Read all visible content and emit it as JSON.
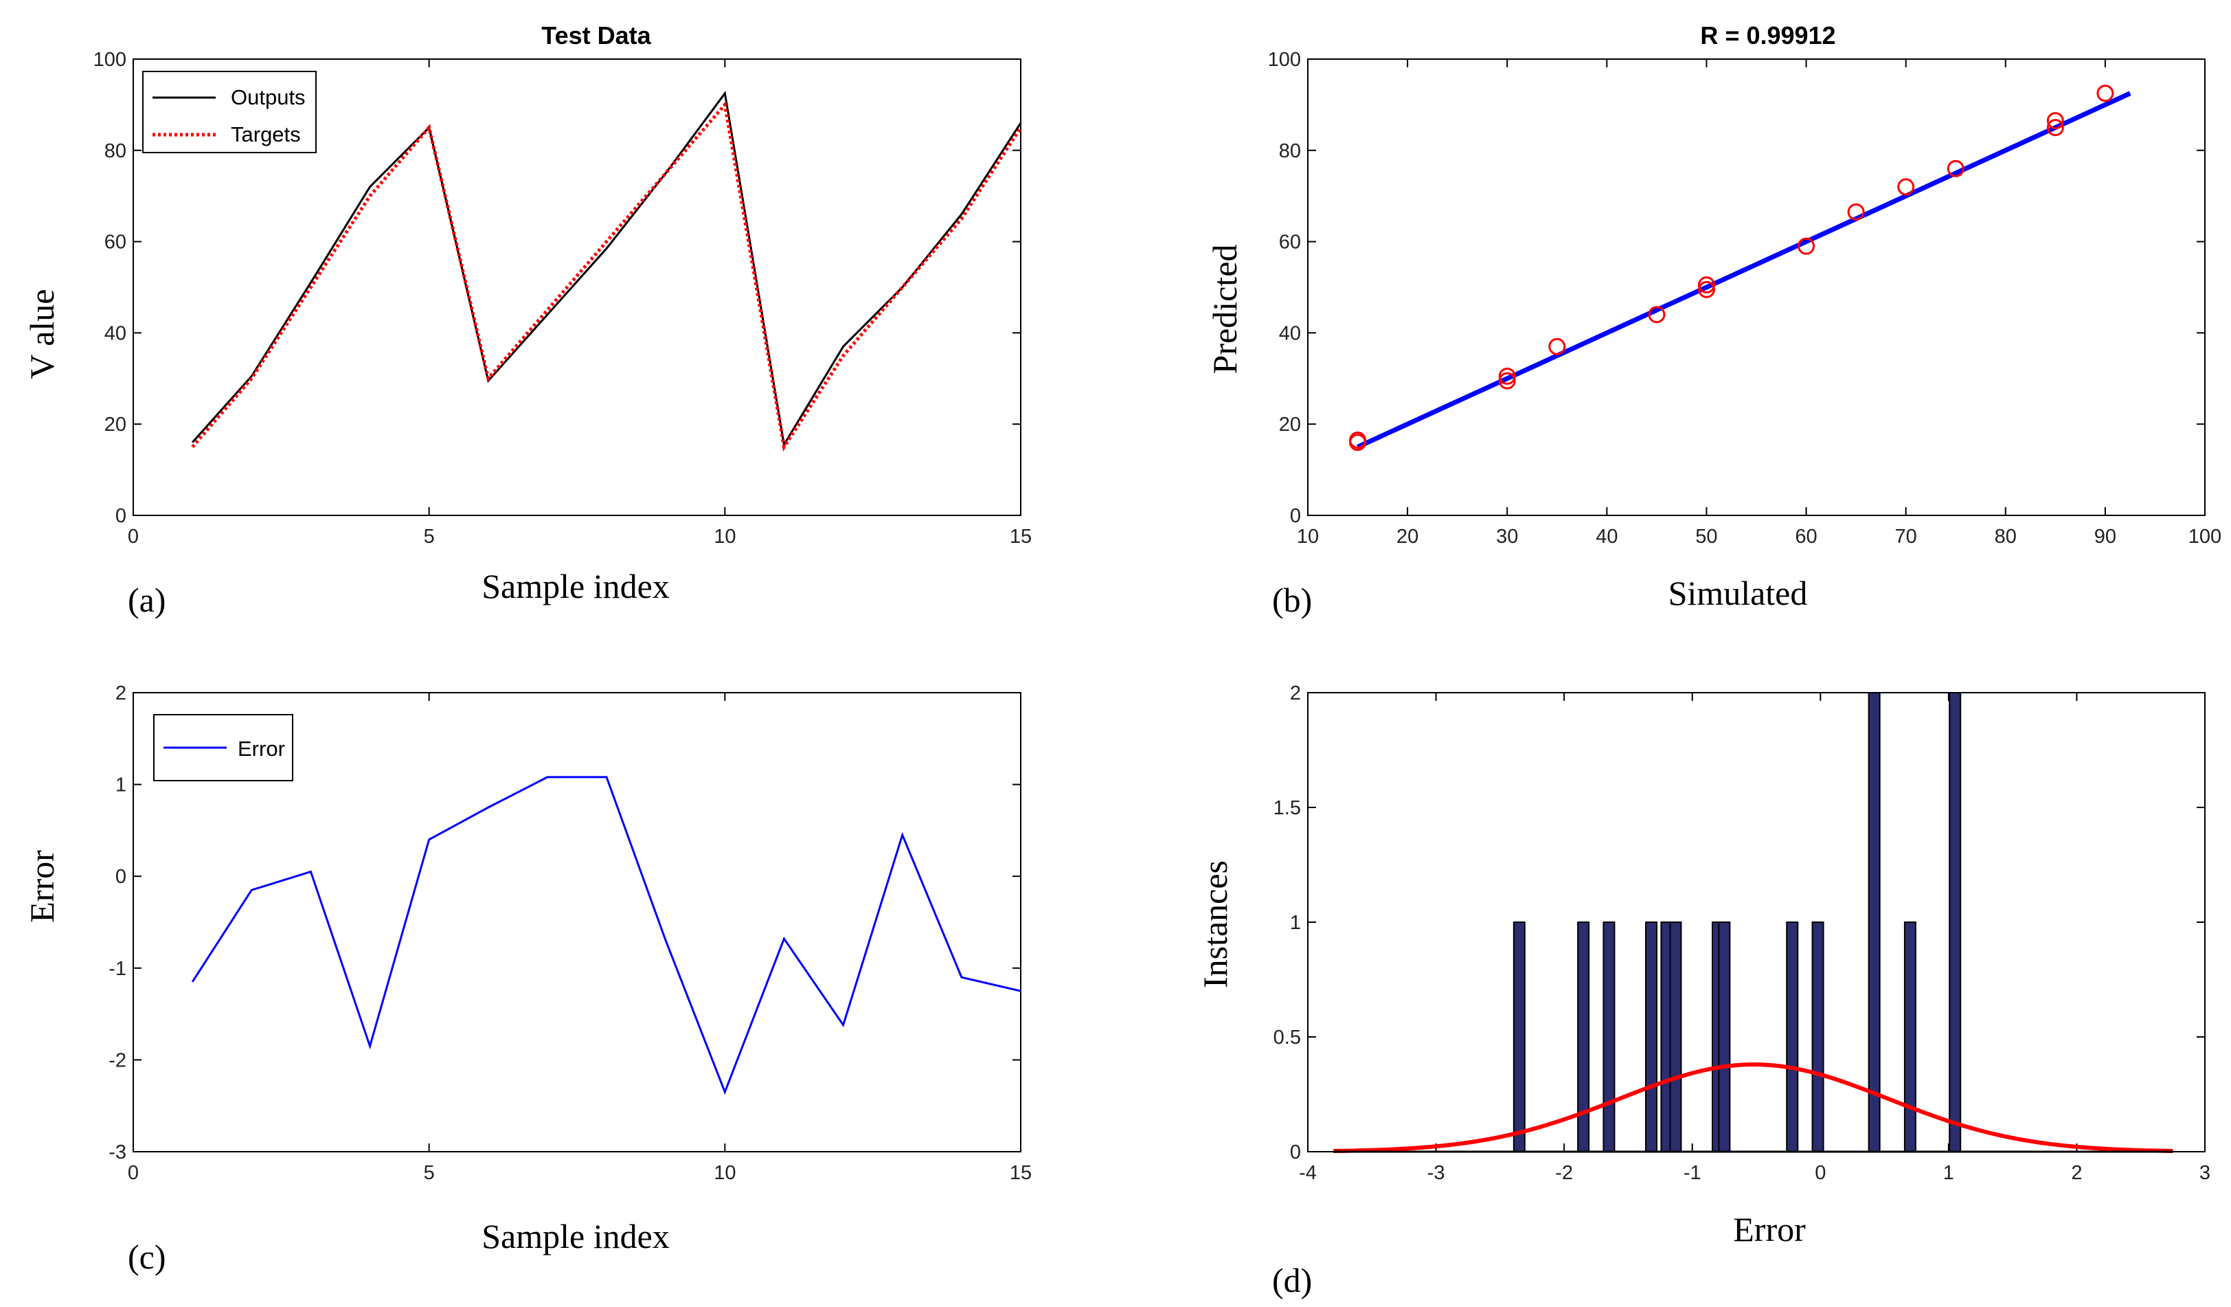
{
  "chart_data": [
    {
      "id": "a",
      "type": "line",
      "title": "Test Data",
      "xlabel": "Sample index",
      "ylabel": "V alue",
      "panel_label": "(a)",
      "xlim": [
        0,
        15
      ],
      "ylim": [
        0,
        100
      ],
      "xticks": [
        0,
        5,
        10,
        15
      ],
      "yticks": [
        0,
        20,
        40,
        60,
        80,
        100
      ],
      "legend": "top-left",
      "series": [
        {
          "name": "Outputs",
          "color": "#000000",
          "style": "solid",
          "x": [
            1,
            2,
            3,
            4,
            5,
            6,
            7,
            8,
            9,
            10,
            11,
            12,
            13,
            14,
            15
          ],
          "y": [
            16,
            30.5,
            51,
            72,
            85,
            29.5,
            44,
            58.5,
            75,
            92.5,
            15.5,
            37,
            50,
            66,
            86
          ]
        },
        {
          "name": "Targets",
          "color": "#ff0000",
          "style": "dotted",
          "x": [
            1,
            2,
            3,
            4,
            5,
            6,
            7,
            8,
            9,
            10,
            11,
            12,
            13,
            14,
            15
          ],
          "y": [
            15,
            30,
            50,
            70,
            85,
            30,
            45,
            60,
            75,
            90,
            15,
            35,
            50,
            65,
            85
          ]
        }
      ]
    },
    {
      "id": "b",
      "type": "scatter",
      "title": "R = 0.99912",
      "xlabel": "Simulated",
      "ylabel": "Predicted",
      "panel_label": "(b)",
      "xlim": [
        10,
        100
      ],
      "ylim": [
        0,
        100
      ],
      "xticks": [
        10,
        20,
        30,
        40,
        50,
        60,
        70,
        80,
        90,
        100
      ],
      "yticks": [
        0,
        20,
        40,
        60,
        80,
        100
      ],
      "points": {
        "color": "#ff0000",
        "x": [
          15,
          15,
          30,
          30,
          35,
          45,
          50,
          50,
          60,
          65,
          70,
          75,
          85,
          85,
          90
        ],
        "y": [
          16,
          16.5,
          29.5,
          30.5,
          37,
          44,
          49.5,
          50.5,
          59,
          66.5,
          72,
          76,
          85,
          86.5,
          92.5
        ]
      },
      "fit_line": {
        "color": "#0000ff",
        "x": [
          15,
          92.5
        ],
        "y": [
          15,
          92.5
        ]
      }
    },
    {
      "id": "c",
      "type": "line",
      "xlabel": "Sample index",
      "ylabel": "Error",
      "panel_label": "(c)",
      "xlim": [
        0,
        15
      ],
      "ylim": [
        -3,
        2
      ],
      "xticks": [
        0,
        5,
        10,
        15
      ],
      "yticks": [
        -3,
        -2,
        -1,
        0,
        1,
        2
      ],
      "legend": "top-left",
      "series": [
        {
          "name": "Error",
          "color": "#0000ff",
          "style": "solid",
          "x": [
            1,
            2,
            3,
            4,
            5,
            6,
            7,
            8,
            9,
            10,
            11,
            12,
            13,
            14,
            15
          ],
          "y": [
            -1.15,
            -0.15,
            0.05,
            -1.85,
            0.4,
            0.75,
            1.08,
            1.08,
            -0.7,
            -2.35,
            -0.68,
            -1.62,
            0.45,
            -1.1,
            -1.25
          ]
        }
      ]
    },
    {
      "id": "d",
      "type": "bar",
      "xlabel": "Error",
      "ylabel": "Instances",
      "panel_label": "(d)",
      "xlim": [
        -4,
        3
      ],
      "ylim": [
        0,
        2
      ],
      "xticks": [
        -4,
        -3,
        -2,
        -1,
        0,
        1,
        2,
        3
      ],
      "yticks": [
        0,
        0.5,
        1,
        1.5,
        2
      ],
      "bars": {
        "color": "#2b2d6e",
        "x": [
          -2.35,
          -1.85,
          -1.65,
          -1.32,
          -1.2,
          -1.13,
          -0.8,
          -0.75,
          -0.22,
          -0.02,
          0.42,
          0.7,
          1.05
        ],
        "values": [
          1,
          1,
          1,
          1,
          1,
          1,
          1,
          1,
          1,
          1,
          2,
          1,
          2
        ]
      },
      "normal_curve": {
        "color": "#ff0000",
        "mean": -0.52,
        "std": 1.05,
        "peak": 0.38,
        "x_from": -3.8,
        "x_to": 2.75
      }
    }
  ]
}
